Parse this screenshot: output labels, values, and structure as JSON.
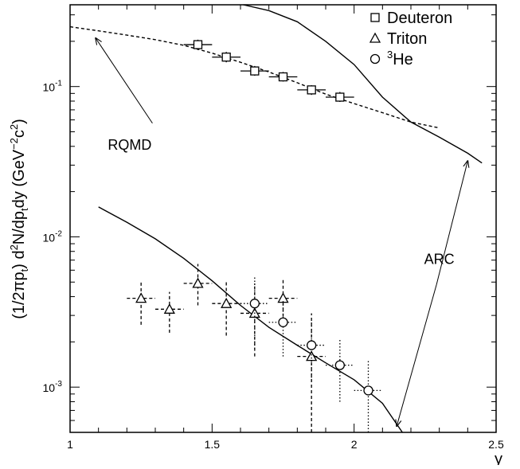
{
  "chart_data": {
    "type": "scatter",
    "xlabel": "y",
    "ylabel_parts": {
      "prefix": "(1/2πp",
      "sub1": "t",
      "mid": ")  d",
      "sup1": "2",
      "mid2": "N/dp",
      "sub2": "t",
      "end": "dy  (GeV",
      "sup2": "−2",
      "c": "c",
      "sup3": "2",
      "close": ")"
    },
    "xlim": [
      1.0,
      2.5
    ],
    "ylim": [
      0.0005,
      0.35
    ],
    "y_scale": "log",
    "x_ticks": [
      {
        "value": 1.0,
        "label": "1"
      },
      {
        "value": 1.5,
        "label": "1.5"
      },
      {
        "value": 2.0,
        "label": "2"
      },
      {
        "value": 2.5,
        "label": "2.5"
      }
    ],
    "y_ticks": [
      {
        "value": 0.001,
        "base": "10",
        "exp": "-3"
      },
      {
        "value": 0.01,
        "base": "10",
        "exp": "-2"
      },
      {
        "value": 0.1,
        "base": "10",
        "exp": "-1"
      }
    ],
    "legend": {
      "position": "top-right",
      "entries": [
        {
          "marker": "square",
          "label": "Deuteron",
          "sup": ""
        },
        {
          "marker": "triangle",
          "label": "Triton",
          "sup": ""
        },
        {
          "marker": "circle",
          "label": "He",
          "sup": "3"
        }
      ]
    },
    "series": [
      {
        "name": "Deuteron",
        "marker": "square",
        "error_style": "solid",
        "points": [
          {
            "x": 1.45,
            "y": 0.19,
            "xerr": 0.05,
            "ylo": 0.175,
            "yhi": 0.205
          },
          {
            "x": 1.55,
            "y": 0.157,
            "xerr": 0.05,
            "ylo": 0.145,
            "yhi": 0.17
          },
          {
            "x": 1.65,
            "y": 0.127,
            "xerr": 0.05,
            "ylo": 0.118,
            "yhi": 0.137
          },
          {
            "x": 1.75,
            "y": 0.116,
            "xerr": 0.05,
            "ylo": 0.108,
            "yhi": 0.125
          },
          {
            "x": 1.85,
            "y": 0.095,
            "xerr": 0.05,
            "ylo": 0.088,
            "yhi": 0.102
          },
          {
            "x": 1.95,
            "y": 0.085,
            "xerr": 0.05,
            "ylo": 0.079,
            "yhi": 0.092
          }
        ]
      },
      {
        "name": "Triton",
        "marker": "triangle",
        "error_style": "dashed",
        "points": [
          {
            "x": 1.25,
            "y": 0.0039,
            "xerr": 0.05,
            "ylo": 0.0026,
            "yhi": 0.0051
          },
          {
            "x": 1.35,
            "y": 0.0033,
            "xerr": 0.05,
            "ylo": 0.0023,
            "yhi": 0.0043
          },
          {
            "x": 1.45,
            "y": 0.0049,
            "xerr": 0.05,
            "ylo": 0.0035,
            "yhi": 0.0066
          },
          {
            "x": 1.55,
            "y": 0.0036,
            "xerr": 0.05,
            "ylo": 0.0022,
            "yhi": 0.0051
          },
          {
            "x": 1.65,
            "y": 0.0031,
            "xerr": 0.05,
            "ylo": 0.0016,
            "yhi": 0.0049
          },
          {
            "x": 1.75,
            "y": 0.0039,
            "xerr": 0.05,
            "ylo": 0.0027,
            "yhi": 0.0053
          },
          {
            "x": 1.85,
            "y": 0.0016,
            "xerr": 0.05,
            "ylo": 0.0005,
            "yhi": 0.0031
          }
        ]
      },
      {
        "name": "3He",
        "marker": "circle",
        "error_style": "dotted",
        "points": [
          {
            "x": 1.65,
            "y": 0.0036,
            "xerr": 0.05,
            "ylo": 0.0018,
            "yhi": 0.0054
          },
          {
            "x": 1.75,
            "y": 0.0027,
            "xerr": 0.05,
            "ylo": 0.0016,
            "yhi": 0.0038
          },
          {
            "x": 1.85,
            "y": 0.0019,
            "xerr": 0.05,
            "ylo": 0.0011,
            "yhi": 0.0027
          },
          {
            "x": 1.95,
            "y": 0.0014,
            "xerr": 0.05,
            "ylo": 0.0008,
            "yhi": 0.0021
          },
          {
            "x": 2.05,
            "y": 0.00095,
            "xerr": 0.05,
            "ylo": 0.0005,
            "yhi": 0.0015
          }
        ]
      }
    ],
    "curves": [
      {
        "name": "RQMD",
        "style": "dashed",
        "points": [
          [
            1.0,
            0.25
          ],
          [
            1.1,
            0.235
          ],
          [
            1.2,
            0.22
          ],
          [
            1.3,
            0.205
          ],
          [
            1.4,
            0.188
          ],
          [
            1.5,
            0.167
          ],
          [
            1.6,
            0.145
          ],
          [
            1.7,
            0.125
          ],
          [
            1.8,
            0.106
          ],
          [
            1.9,
            0.089
          ],
          [
            2.0,
            0.077
          ],
          [
            2.1,
            0.067
          ],
          [
            2.2,
            0.058
          ],
          [
            2.3,
            0.053
          ]
        ]
      },
      {
        "name": "ARC deuteron",
        "style": "solid",
        "points": [
          [
            1.61,
            0.35
          ],
          [
            1.7,
            0.32
          ],
          [
            1.8,
            0.27
          ],
          [
            1.9,
            0.2
          ],
          [
            2.0,
            0.14
          ],
          [
            2.1,
            0.085
          ],
          [
            2.2,
            0.058
          ],
          [
            2.3,
            0.046
          ],
          [
            2.4,
            0.036
          ],
          [
            2.45,
            0.031
          ]
        ]
      },
      {
        "name": "ARC triton",
        "style": "solid",
        "points": [
          [
            1.1,
            0.0158
          ],
          [
            1.2,
            0.0125
          ],
          [
            1.3,
            0.0097
          ],
          [
            1.4,
            0.0072
          ],
          [
            1.5,
            0.0051
          ],
          [
            1.6,
            0.0035
          ],
          [
            1.7,
            0.0025
          ],
          [
            1.8,
            0.0019
          ],
          [
            1.9,
            0.00145
          ],
          [
            2.0,
            0.00112
          ],
          [
            2.1,
            0.00078
          ],
          [
            2.17,
            0.0005
          ]
        ]
      }
    ],
    "annotations": [
      {
        "text": "RQMD",
        "x": 1.21,
        "y": 0.038,
        "arrow_to": [
          1.09,
          0.21
        ],
        "arrow_from": [
          1.29,
          0.057
        ]
      },
      {
        "text": "ARC",
        "x": 2.3,
        "y": 0.0066,
        "arrows": [
          {
            "from": [
              2.29,
              0.0048
            ],
            "to": [
              2.4,
              0.032
            ]
          },
          {
            "from": [
              2.29,
              0.0048
            ],
            "to": [
              2.15,
              0.00055
            ]
          }
        ]
      }
    ]
  }
}
